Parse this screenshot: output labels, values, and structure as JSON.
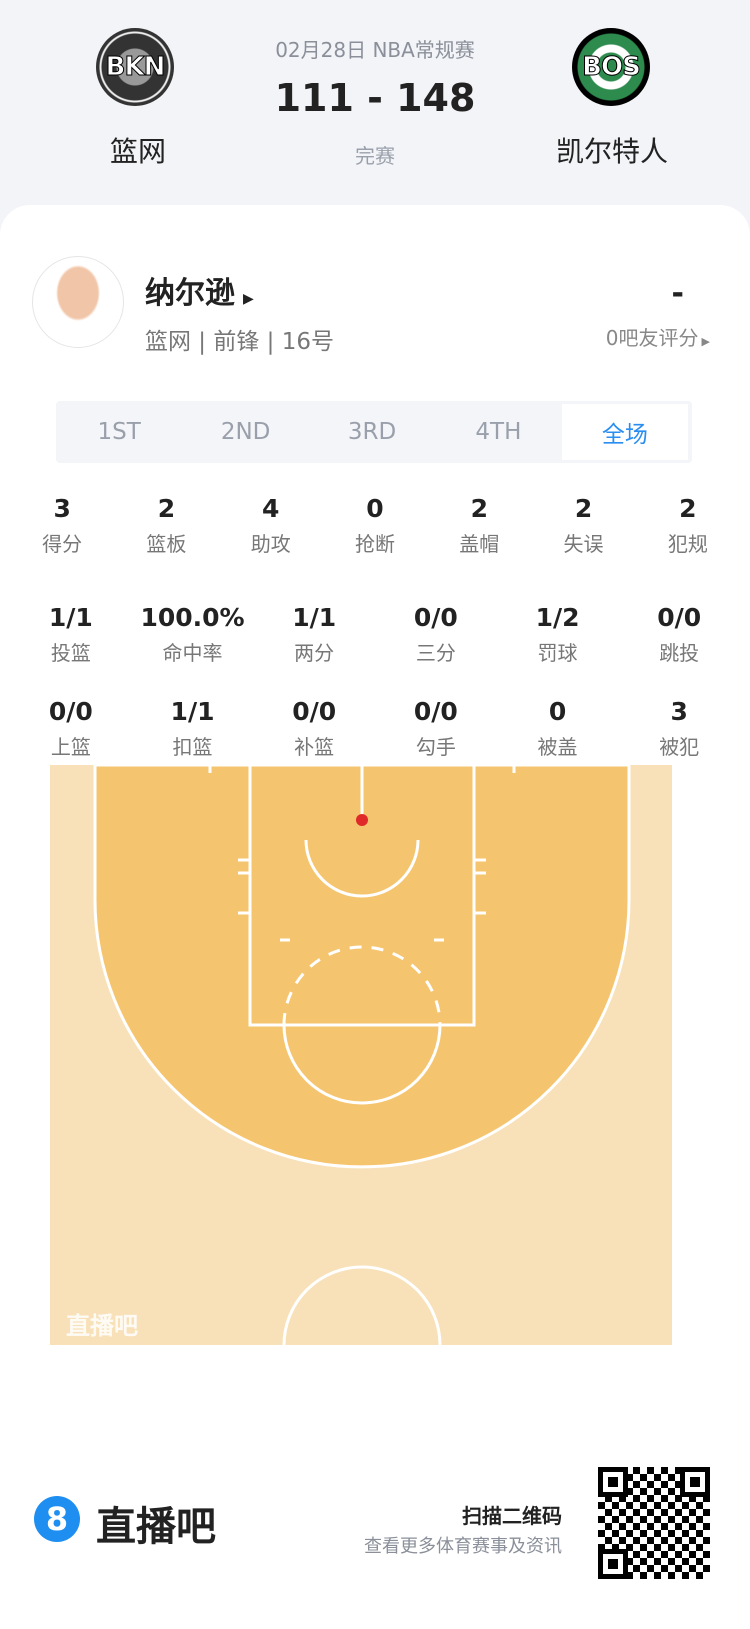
{
  "match": {
    "date_league": "02月28日 NBA常规赛",
    "score": "111 - 148",
    "status": "完赛",
    "home": {
      "abbr": "BKN",
      "name": "篮网",
      "color": "#3a3a3a"
    },
    "away": {
      "abbr": "BOS",
      "name": "凯尔特人",
      "color": "#2e8b4e"
    }
  },
  "player": {
    "name": "纳尔逊",
    "info": "篮网 | 前锋 | 16号",
    "rating": "-",
    "rating_count": "0吧友评分"
  },
  "tabs": [
    {
      "label": "1ST"
    },
    {
      "label": "2ND"
    },
    {
      "label": "3RD"
    },
    {
      "label": "4TH"
    },
    {
      "label": "全场",
      "active": true
    }
  ],
  "stats_row1": [
    {
      "v": "3",
      "l": "得分"
    },
    {
      "v": "2",
      "l": "篮板"
    },
    {
      "v": "4",
      "l": "助攻"
    },
    {
      "v": "0",
      "l": "抢断"
    },
    {
      "v": "2",
      "l": "盖帽"
    },
    {
      "v": "2",
      "l": "失误"
    },
    {
      "v": "2",
      "l": "犯规"
    }
  ],
  "stats_row2": [
    {
      "v": "1/1",
      "l": "投篮"
    },
    {
      "v": "100.0%",
      "l": "命中率"
    },
    {
      "v": "1/1",
      "l": "两分"
    },
    {
      "v": "0/0",
      "l": "三分"
    },
    {
      "v": "1/2",
      "l": "罚球"
    },
    {
      "v": "0/0",
      "l": "跳投"
    }
  ],
  "stats_row3": [
    {
      "v": "0/0",
      "l": "上篮"
    },
    {
      "v": "1/1",
      "l": "扣篮"
    },
    {
      "v": "0/0",
      "l": "补篮"
    },
    {
      "v": "0/0",
      "l": "勾手"
    },
    {
      "v": "0",
      "l": "被盖"
    },
    {
      "v": "3",
      "l": "被犯"
    }
  ],
  "court": {
    "watermark": "直播吧",
    "shots": [
      {
        "result": "made",
        "zone": "rim"
      }
    ],
    "colors": {
      "inside": "#f5c46e",
      "outside": "#f8e1b8",
      "shot": "#e02a2a"
    }
  },
  "footer": {
    "brand": "直播吧",
    "brand_mark": "8",
    "brand_color": "#1e8ff0",
    "qr_title": "扫描二维码",
    "qr_sub": "查看更多体育赛事及资讯"
  }
}
